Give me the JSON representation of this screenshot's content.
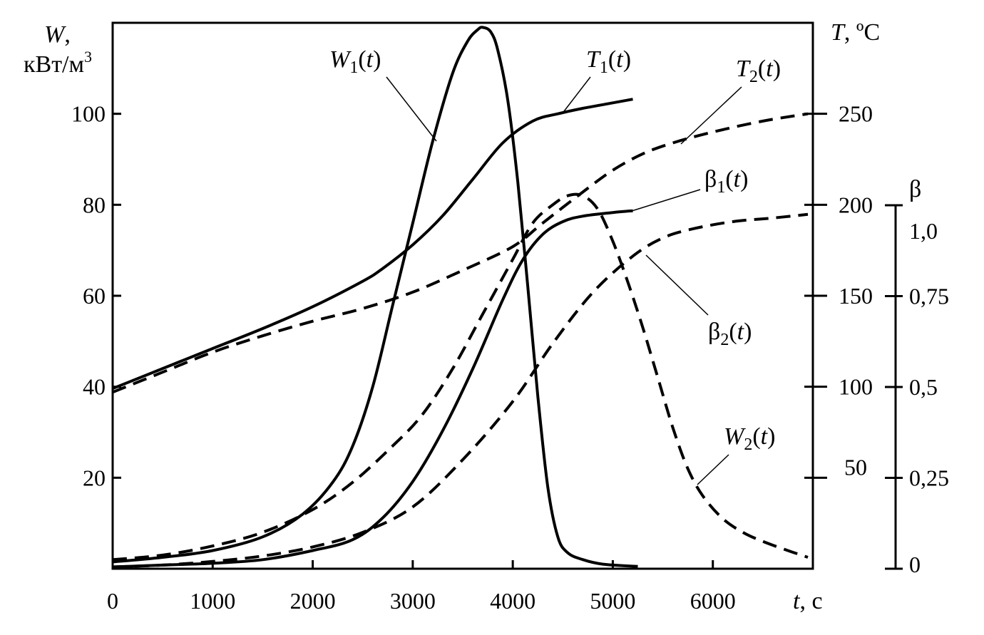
{
  "chart_data": {
    "type": "line",
    "title": "",
    "x_axis": {
      "label_var": "t",
      "label_unit": ", с",
      "range": [
        0,
        7000
      ],
      "ticks": [
        0,
        1000,
        2000,
        3000,
        4000,
        5000,
        6000
      ],
      "tick_labels": [
        "0",
        "1000",
        "2000",
        "3000",
        "4000",
        "5000",
        "6000"
      ]
    },
    "y_left": {
      "label_var": "W",
      "label_rest": ",",
      "label_unit_line": "кВт/м",
      "label_unit_sup": "3",
      "range": [
        0,
        120
      ],
      "ticks": [
        20,
        40,
        60,
        80,
        100
      ],
      "tick_labels": [
        "20",
        "40",
        "60",
        "80",
        "100"
      ]
    },
    "y_right_T": {
      "label_var": "T",
      "label_unit": ", ºC",
      "range": [
        0,
        300
      ],
      "ticks": [
        50,
        100,
        150,
        200,
        250
      ],
      "tick_labels": [
        "50",
        "100",
        "150",
        "200",
        "250"
      ]
    },
    "y_right_beta": {
      "label": "β",
      "range": [
        0,
        1.0
      ],
      "ticks": [
        0,
        0.25,
        0.5,
        0.75,
        1.0
      ],
      "tick_labels": [
        "0",
        "0,25",
        "0,5",
        "0,75",
        "1,0"
      ]
    },
    "grid": false,
    "legend": "none (curves labeled directly)",
    "series": [
      {
        "name": "W1(t)",
        "label_main": "W",
        "label_sub": "1",
        "label_tail": "(t)",
        "axis": "W",
        "style": "solid",
        "x": [
          0,
          500,
          1000,
          1500,
          1900,
          2200,
          2400,
          2600,
          2800,
          3000,
          3200,
          3400,
          3550,
          3650,
          3700,
          3780,
          3850,
          3950,
          4050,
          4150,
          4250,
          4350,
          4450,
          4550,
          4700,
          4900,
          5250
        ],
        "y": [
          1.5,
          2.5,
          4,
          7,
          12,
          19,
          27,
          40,
          58,
          76,
          94,
          109,
          116,
          118.5,
          119,
          118,
          114,
          103,
          85,
          62,
          38,
          18,
          7,
          3.5,
          2,
          1,
          0.5
        ]
      },
      {
        "name": "W2(t)",
        "label_main": "W",
        "label_sub": "2",
        "label_tail": "(t)",
        "axis": "W",
        "style": "dashed",
        "x": [
          0,
          500,
          1000,
          1500,
          2000,
          2400,
          2800,
          3100,
          3400,
          3700,
          4000,
          4200,
          4400,
          4550,
          4700,
          4850,
          5000,
          5150,
          5300,
          5450,
          5600,
          5750,
          5900,
          6100,
          6300,
          6500,
          6750,
          6950
        ],
        "y": [
          2,
          3,
          5,
          8,
          13,
          19,
          27,
          34,
          44,
          56,
          68,
          76,
          80,
          82,
          82,
          79,
          72,
          63,
          53,
          42,
          31,
          22,
          16,
          11,
          8,
          6,
          4,
          2.5
        ]
      },
      {
        "name": "T1(t)",
        "label_main": "T",
        "label_sub": "1",
        "label_tail": "(t)",
        "axis": "T",
        "style": "solid",
        "x": [
          0,
          500,
          1000,
          1500,
          2000,
          2500,
          2700,
          3000,
          3300,
          3600,
          3900,
          4200,
          4450,
          4700,
          5000,
          5200
        ],
        "y": [
          99,
          110,
          121,
          132,
          144,
          158,
          165,
          178,
          194,
          214,
          234,
          246,
          250,
          253,
          256,
          258
        ]
      },
      {
        "name": "T2(t)",
        "label_main": "T",
        "label_sub": "2",
        "label_tail": "(t)",
        "axis": "T",
        "style": "dashed",
        "x": [
          0,
          500,
          1000,
          1500,
          2000,
          2500,
          3000,
          3500,
          4000,
          4300,
          4700,
          5000,
          5300,
          5600,
          6000,
          6500,
          6950
        ],
        "y": [
          97,
          108,
          119,
          128,
          136,
          143,
          152,
          164,
          177,
          190,
          207,
          219,
          228,
          234,
          240,
          246,
          250
        ]
      },
      {
        "name": "β1(t)",
        "label_main": "β",
        "label_sub": "1",
        "label_tail": "(t)",
        "axis": "beta",
        "style": "solid",
        "x": [
          0,
          500,
          1000,
          1500,
          2000,
          2400,
          2700,
          3000,
          3300,
          3600,
          3900,
          4100,
          4300,
          4500,
          4700,
          5000,
          5200
        ],
        "y": [
          0.005,
          0.01,
          0.015,
          0.025,
          0.05,
          0.08,
          0.14,
          0.24,
          0.38,
          0.55,
          0.74,
          0.85,
          0.92,
          0.955,
          0.97,
          0.98,
          0.985
        ]
      },
      {
        "name": "β2(t)",
        "label_main": "β",
        "label_sub": "2",
        "label_tail": "(t)",
        "axis": "beta",
        "style": "dashed",
        "x": [
          0,
          500,
          1000,
          1500,
          2000,
          2500,
          3000,
          3500,
          4000,
          4400,
          4800,
          5200,
          5500,
          5800,
          6200,
          6600,
          6950
        ],
        "y": [
          0.005,
          0.01,
          0.02,
          0.035,
          0.06,
          0.1,
          0.17,
          0.3,
          0.46,
          0.62,
          0.76,
          0.86,
          0.91,
          0.935,
          0.955,
          0.965,
          0.975
        ]
      }
    ]
  }
}
